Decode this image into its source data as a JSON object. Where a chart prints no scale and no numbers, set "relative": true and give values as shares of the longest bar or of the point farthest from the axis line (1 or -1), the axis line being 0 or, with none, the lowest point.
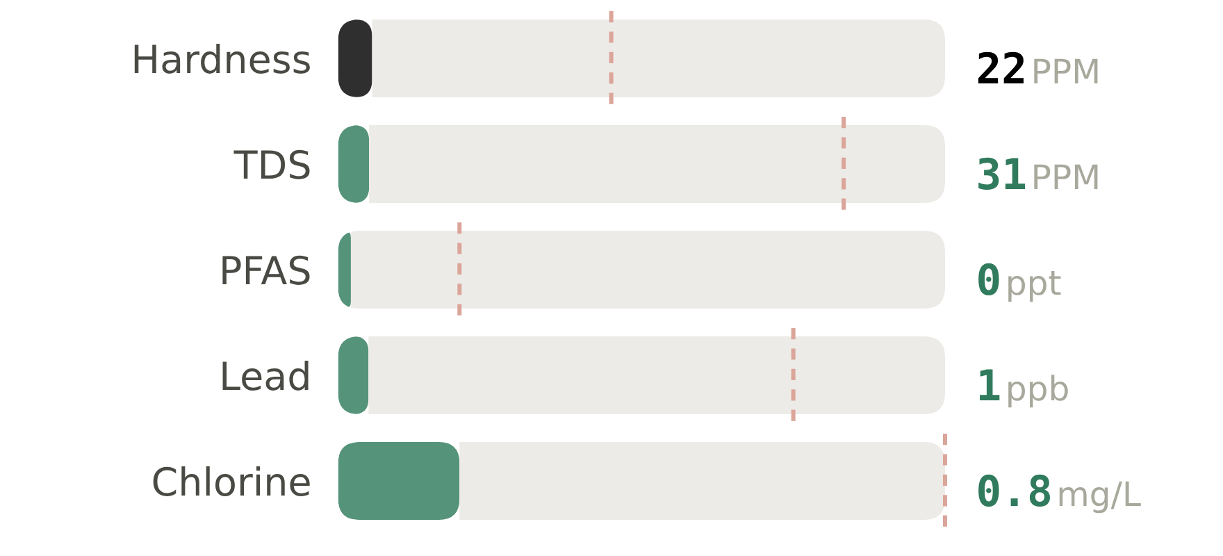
{
  "chart_data": {
    "type": "bar",
    "orientation": "horizontal",
    "relative": true,
    "stacked": true,
    "categories": [
      "Hardness",
      "TDS",
      "PFAS",
      "Lead",
      "Chlorine"
    ],
    "series": [
      {
        "colors": [
          "#2f2f2f",
          "#55937a",
          "#55937a",
          "#55937a",
          "#55937a"
        ],
        "values": [
          0.056,
          0.051,
          0.021,
          0.05,
          0.2
        ]
      },
      {
        "color": "#edebe7",
        "values": [
          0.944,
          0.949,
          0.979,
          0.95,
          0.8
        ]
      }
    ],
    "annotations": [
      "22 PPM",
      "31 PPM",
      "0 ppt",
      "1 ppb",
      "0.8 mg/L"
    ],
    "ref_lines": [
      {
        "axis": "x",
        "value": 0.45,
        "color": "#dba59a",
        "line_style": "dashed"
      },
      {
        "axis": "x",
        "value": 0.833,
        "color": "#dba59a",
        "line_style": "dashed"
      },
      {
        "axis": "x",
        "value": 0.2,
        "color": "#dba59a",
        "line_style": "dashed"
      },
      {
        "axis": "x",
        "value": 0.75,
        "color": "#dba59a",
        "line_style": "dashed"
      },
      {
        "axis": "x",
        "value": 1,
        "color": "#dba59a",
        "line_style": "dashed"
      }
    ]
  }
}
